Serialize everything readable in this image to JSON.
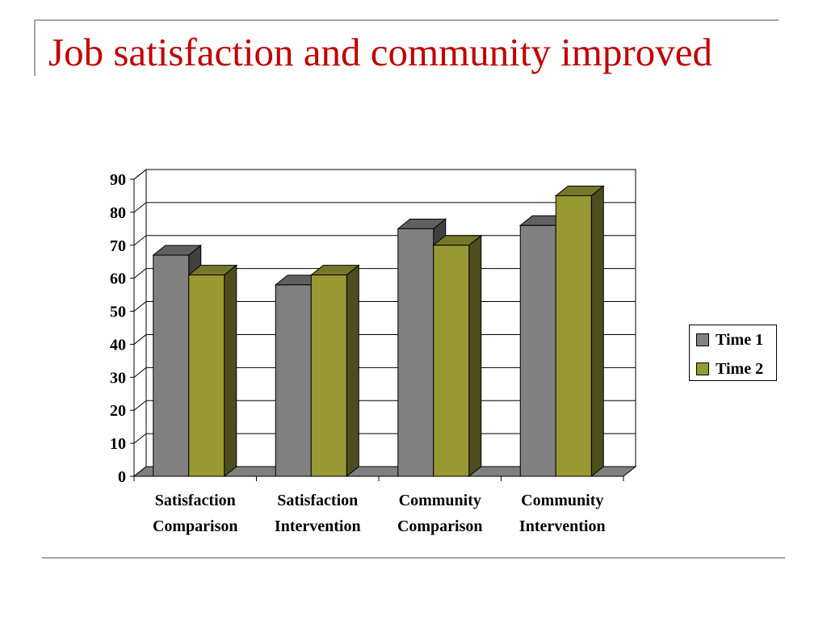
{
  "slide": {
    "title": "Job satisfaction and community improved"
  },
  "chart_data": {
    "type": "bar",
    "style": "3d-clustered",
    "categories": [
      [
        "Satisfaction",
        "Comparison"
      ],
      [
        "Satisfaction",
        "Intervention"
      ],
      [
        "Community",
        "Comparison"
      ],
      [
        "Community",
        "Intervention"
      ]
    ],
    "series": [
      {
        "name": "Time 1",
        "values": [
          67,
          58,
          75,
          76
        ],
        "color": "#808080",
        "side_color": "#404040",
        "top_color": "#606060"
      },
      {
        "name": "Time 2",
        "values": [
          61,
          61,
          70,
          85
        ],
        "color": "#999933",
        "side_color": "#4d4d1f",
        "top_color": "#777729"
      }
    ],
    "ylim": [
      0,
      90
    ],
    "yticks": [
      0,
      10,
      20,
      30,
      40,
      50,
      60,
      70,
      80,
      90
    ],
    "grid": true,
    "legend": "right",
    "title": "",
    "xlabel": "",
    "ylabel": ""
  }
}
